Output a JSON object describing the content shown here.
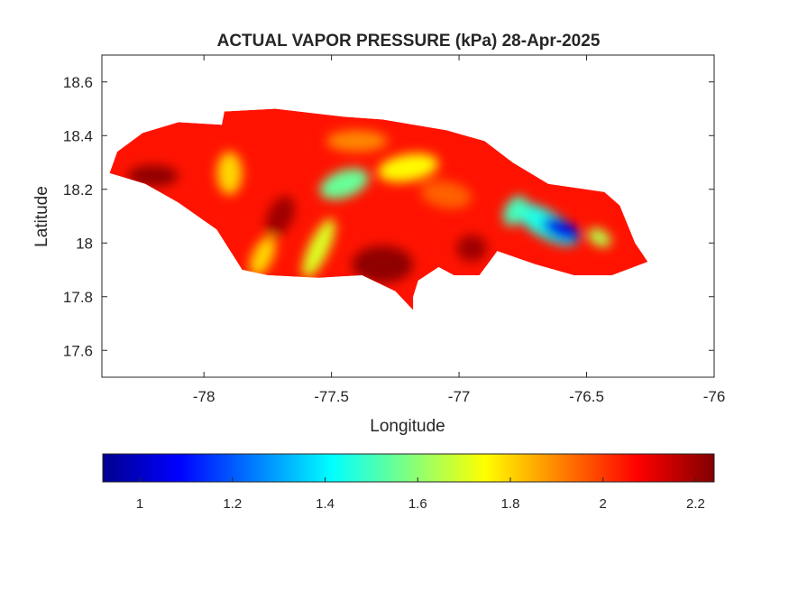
{
  "chart_data": {
    "type": "heatmap",
    "title": "ACTUAL VAPOR PRESSURE (kPa) 28-Apr-2025",
    "xlabel": "Longitude",
    "ylabel": "Latitude",
    "xlim": [
      -78.4,
      -76.0
    ],
    "ylim": [
      17.5,
      18.7
    ],
    "xticks": [
      -78,
      -77.5,
      -77,
      -76.5,
      -76
    ],
    "xtick_labels": [
      "-78",
      "-77.5",
      "-77",
      "-76.5",
      "-76"
    ],
    "yticks": [
      17.6,
      17.8,
      18.0,
      18.2,
      18.4,
      18.6
    ],
    "ytick_labels": [
      "17.6",
      "17.8",
      "18",
      "18.2",
      "18.4",
      "18.6"
    ],
    "grid": false,
    "colormap": "jet",
    "colorbar": {
      "orientation": "horizontal",
      "placement": "bottom",
      "range": [
        0.92,
        2.24
      ],
      "ticks": [
        1,
        1.2,
        1.4,
        1.6,
        1.8,
        2,
        2.2
      ],
      "tick_labels": [
        "1",
        "1.2",
        "1.4",
        "1.6",
        "1.8",
        "2",
        "2.2"
      ]
    },
    "region_outline_lonlat": [
      [
        -78.37,
        18.26
      ],
      [
        -78.34,
        18.34
      ],
      [
        -78.24,
        18.41
      ],
      [
        -78.1,
        18.45
      ],
      [
        -77.93,
        18.44
      ],
      [
        -77.92,
        18.49
      ],
      [
        -77.72,
        18.5
      ],
      [
        -77.45,
        18.47
      ],
      [
        -77.3,
        18.46
      ],
      [
        -77.05,
        18.42
      ],
      [
        -76.9,
        18.38
      ],
      [
        -76.79,
        18.3
      ],
      [
        -76.65,
        18.22
      ],
      [
        -76.43,
        18.19
      ],
      [
        -76.37,
        18.14
      ],
      [
        -76.31,
        18.0
      ],
      [
        -76.26,
        17.93
      ],
      [
        -76.4,
        17.88
      ],
      [
        -76.55,
        17.88
      ],
      [
        -76.7,
        17.92
      ],
      [
        -76.85,
        17.97
      ],
      [
        -76.92,
        17.88
      ],
      [
        -77.02,
        17.88
      ],
      [
        -77.08,
        17.91
      ],
      [
        -77.16,
        17.86
      ],
      [
        -77.18,
        17.8
      ],
      [
        -77.18,
        17.75
      ],
      [
        -77.25,
        17.82
      ],
      [
        -77.38,
        17.88
      ],
      [
        -77.55,
        17.87
      ],
      [
        -77.75,
        17.88
      ],
      [
        -77.85,
        17.9
      ],
      [
        -77.95,
        18.05
      ],
      [
        -78.1,
        18.15
      ],
      [
        -78.23,
        18.22
      ],
      [
        -78.37,
        18.26
      ]
    ],
    "value_features": [
      {
        "lon": -77.45,
        "lat": 18.22,
        "rx": 0.1,
        "ry": 0.05,
        "rot": -20,
        "value": 1.55
      },
      {
        "lon": -77.2,
        "lat": 18.28,
        "rx": 0.12,
        "ry": 0.05,
        "rot": -10,
        "value": 1.75
      },
      {
        "lon": -77.55,
        "lat": 17.98,
        "rx": 0.04,
        "ry": 0.12,
        "rot": 25,
        "value": 1.7
      },
      {
        "lon": -77.77,
        "lat": 17.95,
        "rx": 0.04,
        "ry": 0.08,
        "rot": 25,
        "value": 1.8
      },
      {
        "lon": -77.9,
        "lat": 18.26,
        "rx": 0.05,
        "ry": 0.08,
        "rot": 0,
        "value": 1.8
      },
      {
        "lon": -76.66,
        "lat": 18.07,
        "rx": 0.14,
        "ry": 0.05,
        "rot": 30,
        "value": 1.45
      },
      {
        "lon": -76.6,
        "lat": 18.05,
        "rx": 0.08,
        "ry": 0.035,
        "rot": 25,
        "value": 1.05
      },
      {
        "lon": -76.78,
        "lat": 18.12,
        "rx": 0.04,
        "ry": 0.06,
        "rot": 30,
        "value": 1.5
      },
      {
        "lon": -76.45,
        "lat": 18.02,
        "rx": 0.05,
        "ry": 0.03,
        "rot": 30,
        "value": 1.65
      },
      {
        "lon": -78.2,
        "lat": 18.25,
        "rx": 0.1,
        "ry": 0.04,
        "rot": 0,
        "value": 2.22
      },
      {
        "lon": -77.3,
        "lat": 17.92,
        "rx": 0.12,
        "ry": 0.07,
        "rot": 0,
        "value": 2.22
      },
      {
        "lon": -77.7,
        "lat": 18.1,
        "rx": 0.05,
        "ry": 0.08,
        "rot": 25,
        "value": 2.2
      },
      {
        "lon": -76.95,
        "lat": 17.98,
        "rx": 0.06,
        "ry": 0.05,
        "rot": 0,
        "value": 2.2
      },
      {
        "lon": -77.4,
        "lat": 18.38,
        "rx": 0.12,
        "ry": 0.04,
        "rot": 0,
        "value": 1.9
      },
      {
        "lon": -77.05,
        "lat": 18.18,
        "rx": 0.1,
        "ry": 0.05,
        "rot": 10,
        "value": 1.95
      }
    ]
  }
}
